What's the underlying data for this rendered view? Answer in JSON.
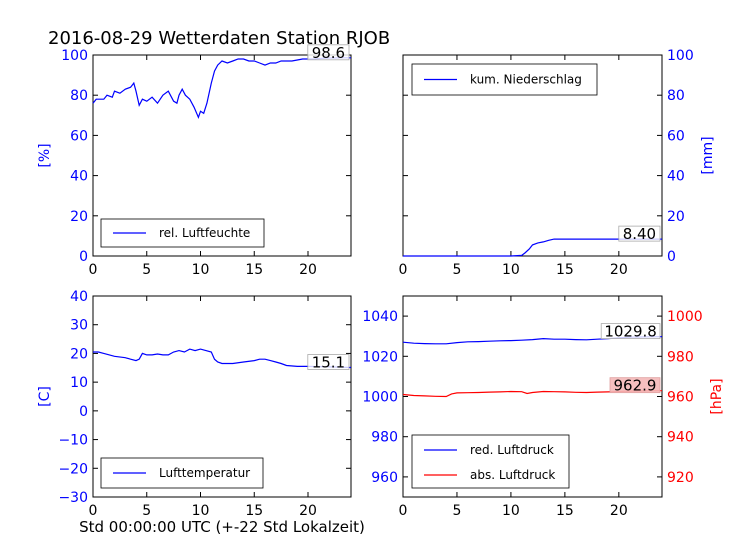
{
  "figure": {
    "title": "2016-08-29 Wetterdaten Station RJOB",
    "xlabel": "Std 00:00:00 UTC (+-22 Std Lokalzeit)"
  },
  "colors": {
    "blue": "#0000ff",
    "red": "#ff0000",
    "black": "#000000"
  },
  "chart_data": [
    {
      "type": "line",
      "panel": "humidity",
      "ylabel": "[%]",
      "xlim": [
        0,
        24
      ],
      "ylim": [
        0,
        100
      ],
      "xticks": [
        0,
        5,
        10,
        15,
        20
      ],
      "yticks": [
        0,
        20,
        40,
        60,
        80,
        100
      ],
      "ytick_labels": [
        "0",
        "20",
        "40",
        "60",
        "80",
        "100"
      ],
      "legend_position": "lower-right",
      "annotation": "98.6",
      "series": [
        {
          "name": "rel. Luftfeuchte",
          "color": "#0000ff",
          "x": [
            0,
            0.3,
            1,
            1.3,
            1.8,
            2,
            2.5,
            3,
            3.5,
            3.8,
            4,
            4.3,
            4.6,
            5,
            5.5,
            6,
            6.5,
            7,
            7.5,
            7.8,
            8,
            8.3,
            8.6,
            9,
            9.4,
            9.8,
            10,
            10.3,
            10.6,
            11,
            11.3,
            11.6,
            12,
            12.5,
            13,
            13.5,
            14,
            14.5,
            15,
            15.5,
            16,
            16.5,
            17,
            17.5,
            18,
            18.5,
            19,
            19.5,
            20,
            20.5,
            21,
            21.5,
            22,
            22.5,
            23,
            23.5,
            24
          ],
          "y": [
            76,
            78,
            78,
            80,
            79,
            82,
            81,
            83,
            84,
            86,
            82,
            75,
            78,
            77,
            79,
            76,
            80,
            82,
            77,
            76,
            80,
            83,
            80,
            78,
            74,
            69,
            72,
            71,
            76,
            86,
            92,
            95,
            97,
            96,
            97,
            98,
            98,
            97,
            97,
            96,
            95,
            96,
            96,
            97,
            97,
            97,
            97.5,
            98,
            98,
            98,
            98.2,
            98.4,
            98.5,
            98.5,
            98.6,
            98.6,
            98.6
          ]
        }
      ]
    },
    {
      "type": "line",
      "panel": "precipitation",
      "ylabel": "[mm]",
      "xlim": [
        0,
        24
      ],
      "ylim": [
        0,
        100
      ],
      "xticks": [
        0,
        5,
        10,
        15,
        20
      ],
      "yticks": [
        0,
        20,
        40,
        60,
        80,
        100
      ],
      "ytick_labels": [
        "0",
        "20",
        "40",
        "60",
        "80",
        "100"
      ],
      "legend_position": "upper-left",
      "annotation": "8.40",
      "series": [
        {
          "name": "kum. Niederschlag",
          "color": "#0000ff",
          "x": [
            0,
            5,
            10,
            11,
            11.3,
            11.7,
            12,
            12.5,
            13,
            13.5,
            14,
            15,
            20,
            24
          ],
          "y": [
            0,
            0,
            0,
            0.3,
            1.5,
            3.5,
            5.5,
            6.5,
            7,
            7.8,
            8.4,
            8.4,
            8.4,
            8.4
          ]
        }
      ]
    },
    {
      "type": "line",
      "panel": "temperature",
      "ylabel": "[C]",
      "xlim": [
        0,
        24
      ],
      "ylim": [
        -30,
        40
      ],
      "xticks": [
        0,
        5,
        10,
        15,
        20
      ],
      "yticks": [
        -30,
        -20,
        -10,
        0,
        10,
        20,
        30,
        40
      ],
      "ytick_labels": [
        "−30",
        "−20",
        "−10",
        "0",
        "10",
        "20",
        "30",
        "40"
      ],
      "legend_position": "lower-right",
      "annotation": "15.1",
      "series": [
        {
          "name": "Lufttemperatur",
          "color": "#0000ff",
          "x": [
            0,
            0.5,
            1,
            2,
            3,
            3.5,
            4,
            4.3,
            4.6,
            5,
            5.5,
            6,
            6.5,
            7,
            7.5,
            8,
            8.5,
            9,
            9.5,
            10,
            10.5,
            11,
            11.3,
            11.6,
            12,
            13,
            14,
            15,
            15.5,
            16,
            16.5,
            17,
            17.5,
            18,
            19,
            20,
            21,
            22,
            23,
            24
          ],
          "y": [
            20.5,
            20.5,
            20,
            19,
            18.5,
            18,
            17.5,
            18,
            20,
            19.5,
            19.5,
            19.8,
            19.5,
            19.5,
            20.5,
            21,
            20.5,
            21.5,
            21,
            21.5,
            21,
            20.5,
            18,
            17,
            16.5,
            16.5,
            17,
            17.5,
            18,
            18,
            17.5,
            17,
            16.5,
            15.8,
            15.5,
            15.5,
            15.4,
            15.3,
            15.2,
            15.1
          ]
        }
      ]
    },
    {
      "type": "line",
      "panel": "pressure",
      "ylabel": "[hPa]",
      "xlim": [
        0,
        24
      ],
      "ylim_left": [
        950,
        1050
      ],
      "ylim_right": [
        910,
        1010
      ],
      "xticks": [
        0,
        5,
        10,
        15,
        20
      ],
      "yticks_left": [
        960,
        980,
        1000,
        1020,
        1040
      ],
      "ytick_labels_left": [
        "960",
        "980",
        "1000",
        "1020",
        "1040"
      ],
      "yticks_right": [
        920,
        940,
        960,
        980,
        1000
      ],
      "ytick_labels_right": [
        "920",
        "940",
        "960",
        "980",
        "1000"
      ],
      "legend_position": "lower-right",
      "annotations": [
        "1029.8",
        "962.9"
      ],
      "series": [
        {
          "name": "red. Luftdruck",
          "color": "#0000ff",
          "axis": "left",
          "x": [
            0,
            1,
            2,
            3,
            4,
            5,
            6,
            7,
            8,
            9,
            10,
            11,
            12,
            13,
            14,
            15,
            16,
            17,
            18,
            19,
            20,
            21,
            22,
            23,
            24
          ],
          "y": [
            1027,
            1026.5,
            1026.3,
            1026.2,
            1026.2,
            1026.8,
            1027.2,
            1027.3,
            1027.5,
            1027.7,
            1027.8,
            1028,
            1028.3,
            1028.8,
            1028.5,
            1028.5,
            1028.3,
            1028.2,
            1028.5,
            1028.8,
            1029.2,
            1029.5,
            1029.6,
            1029.7,
            1029.8
          ]
        },
        {
          "name": "abs. Luftdruck",
          "color": "#ff0000",
          "axis": "right",
          "x": [
            0,
            1,
            2,
            3,
            4,
            4.5,
            5,
            6,
            7,
            8,
            9,
            10,
            11,
            11.5,
            12,
            13,
            14,
            15,
            16,
            17,
            18,
            19,
            20,
            21,
            22,
            23,
            24
          ],
          "y": [
            961,
            960.5,
            960.3,
            960.1,
            960,
            961.3,
            961.8,
            961.9,
            962,
            962.2,
            962.3,
            962.5,
            962.4,
            961.5,
            962,
            962.5,
            962.4,
            962.3,
            962.1,
            962,
            962.2,
            962.3,
            962.5,
            962.7,
            962.8,
            962.9,
            962.9
          ]
        }
      ]
    }
  ]
}
